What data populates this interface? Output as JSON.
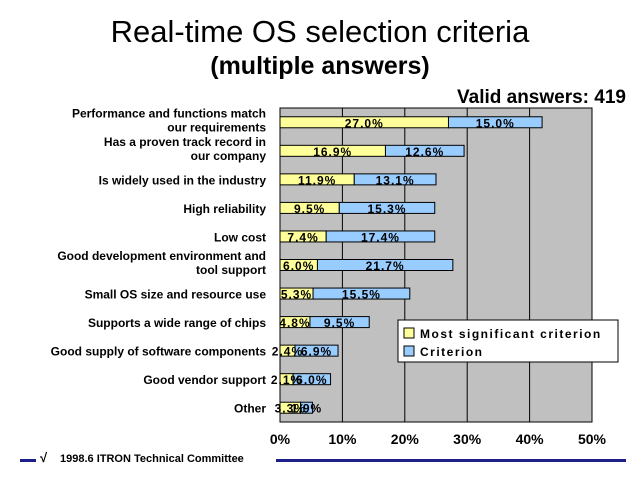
{
  "header": {
    "title": "Real-time OS selection criteria",
    "subtitle": "(multiple answers)",
    "valid_answers": "Valid answers: 419"
  },
  "footer": {
    "text": "1998.6  ITRON Technical Committee",
    "logo_icon": "itron-logo-icon"
  },
  "colors": {
    "most_significant": "#ffff99",
    "criterion": "#99ccff",
    "plot_bg": "#c0c0c0",
    "footer_rule": "#1f1f8c"
  },
  "chart_data": {
    "type": "bar",
    "orientation": "horizontal",
    "stacked": true,
    "categories": [
      [
        "Performance and functions match",
        "our requirements"
      ],
      [
        "Has a proven track record in",
        "our company"
      ],
      [
        "Is widely used in the industry"
      ],
      [
        "High reliability"
      ],
      [
        "Low cost"
      ],
      [
        "Good development environment and",
        "tool support"
      ],
      [
        "Small OS size and resource use"
      ],
      [
        "Supports a wide range of chips"
      ],
      [
        "Good supply of software components"
      ],
      [
        "Good vendor support"
      ],
      [
        "Other"
      ]
    ],
    "series": [
      {
        "name": "Most significant criterion",
        "color": "#ffff99",
        "values": [
          27.0,
          16.9,
          11.9,
          9.5,
          7.4,
          6.0,
          5.3,
          4.8,
          2.4,
          2.1,
          3.3
        ],
        "labels": [
          "27.0%",
          "16.9%",
          "11.9%",
          "9.5%",
          "7.4%",
          "6.0%",
          "5.3%",
          "4.8%",
          "2.4%",
          "2.1%",
          "3.3%"
        ]
      },
      {
        "name": "Criterion",
        "color": "#99ccff",
        "values": [
          15.0,
          12.6,
          13.1,
          15.3,
          17.4,
          21.7,
          15.5,
          9.5,
          6.9,
          6.0,
          1.9
        ],
        "labels": [
          "15.0%",
          "12.6%",
          "13.1%",
          "15.3%",
          "17.4%",
          "21.7%",
          "15.5%",
          "9.5%",
          "6.9%",
          "6.0%",
          "1.9%"
        ]
      }
    ],
    "xlim": [
      0,
      50
    ],
    "xticks": [
      0,
      10,
      20,
      30,
      40,
      50
    ],
    "xtick_labels": [
      "0%",
      "10%",
      "20%",
      "30%",
      "40%",
      "50%"
    ],
    "grid": true,
    "legend_position": "right"
  }
}
